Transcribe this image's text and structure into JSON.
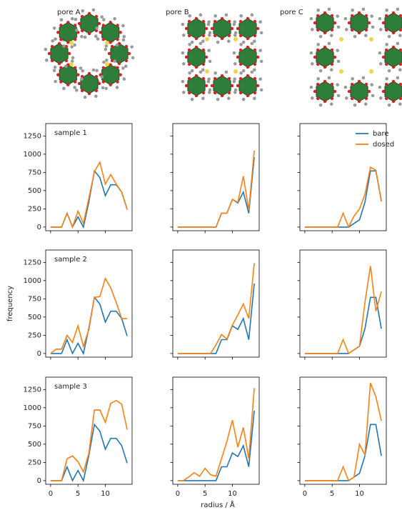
{
  "pore_labels": [
    "pore A",
    "pore B",
    "pore C"
  ],
  "figure": {
    "xlabel": "radius / Å",
    "ylabel": "frequency"
  },
  "chart_data": [
    {
      "type": "line",
      "title": "sample 1",
      "x": [
        0,
        1,
        2,
        3,
        4,
        5,
        6,
        7,
        8,
        9,
        10,
        11,
        12,
        13,
        14
      ],
      "xlim": [
        -0.9,
        14.9
      ],
      "ylim": [
        -50,
        1420
      ],
      "xticks": [
        0,
        5,
        10
      ],
      "yticks": [
        0,
        250,
        500,
        750,
        1000,
        1250
      ],
      "series": [
        {
          "color": "#1f77b4",
          "values": [
            0,
            0,
            0,
            190,
            0,
            140,
            0,
            350,
            770,
            680,
            430,
            580,
            580,
            480,
            240
          ]
        },
        {
          "color": "#ff7f0e",
          "values": [
            0,
            0,
            0,
            190,
            0,
            220,
            50,
            400,
            760,
            890,
            590,
            720,
            590,
            480,
            240
          ]
        }
      ]
    },
    {
      "type": "line",
      "x": [
        0,
        1,
        2,
        3,
        4,
        5,
        6,
        7,
        8,
        9,
        10,
        11,
        12,
        13,
        14
      ],
      "xlim": [
        -0.9,
        14.9
      ],
      "ylim": [
        -50,
        1420
      ],
      "xticks": [
        0,
        5,
        10
      ],
      "yticks": [
        0,
        250,
        500,
        750,
        1000,
        1250
      ],
      "series": [
        {
          "color": "#1f77b4",
          "values": [
            0,
            0,
            0,
            0,
            0,
            0,
            0,
            0,
            190,
            190,
            380,
            330,
            480,
            190,
            960
          ]
        },
        {
          "color": "#ff7f0e",
          "values": [
            0,
            0,
            0,
            0,
            0,
            0,
            0,
            0,
            190,
            190,
            380,
            340,
            700,
            230,
            1050
          ]
        }
      ]
    },
    {
      "type": "line",
      "x": [
        0,
        1,
        2,
        3,
        4,
        5,
        6,
        7,
        8,
        9,
        10,
        11,
        12,
        13,
        14
      ],
      "xlim": [
        -0.9,
        14.9
      ],
      "ylim": [
        -50,
        1420
      ],
      "xticks": [
        0,
        5,
        10
      ],
      "yticks": [
        0,
        250,
        500,
        750,
        1000,
        1250
      ],
      "legend": "upper right",
      "series": [
        {
          "name": "bare",
          "color": "#1f77b4",
          "values": [
            0,
            0,
            0,
            0,
            0,
            0,
            0,
            0,
            0,
            50,
            100,
            340,
            770,
            770,
            360
          ]
        },
        {
          "name": "dosed",
          "color": "#ff7f0e",
          "values": [
            0,
            0,
            0,
            0,
            0,
            0,
            0,
            190,
            0,
            150,
            250,
            450,
            820,
            780,
            350
          ]
        }
      ]
    },
    {
      "type": "line",
      "title": "sample 2",
      "x": [
        0,
        1,
        2,
        3,
        4,
        5,
        6,
        7,
        8,
        9,
        10,
        11,
        12,
        13,
        14
      ],
      "xlim": [
        -0.9,
        14.9
      ],
      "ylim": [
        -50,
        1420
      ],
      "xticks": [
        0,
        5,
        10
      ],
      "yticks": [
        0,
        250,
        500,
        750,
        1000,
        1250
      ],
      "series": [
        {
          "color": "#1f77b4",
          "values": [
            0,
            0,
            0,
            190,
            0,
            140,
            0,
            350,
            770,
            680,
            430,
            580,
            580,
            480,
            240
          ]
        },
        {
          "color": "#ff7f0e",
          "values": [
            0,
            60,
            60,
            250,
            150,
            380,
            100,
            330,
            770,
            780,
            1030,
            900,
            700,
            480,
            480
          ]
        }
      ]
    },
    {
      "type": "line",
      "x": [
        0,
        1,
        2,
        3,
        4,
        5,
        6,
        7,
        8,
        9,
        10,
        11,
        12,
        13,
        14
      ],
      "xlim": [
        -0.9,
        14.9
      ],
      "ylim": [
        -50,
        1420
      ],
      "xticks": [
        0,
        5,
        10
      ],
      "yticks": [
        0,
        250,
        500,
        750,
        1000,
        1250
      ],
      "series": [
        {
          "color": "#1f77b4",
          "values": [
            0,
            0,
            0,
            0,
            0,
            0,
            0,
            0,
            190,
            190,
            380,
            330,
            480,
            190,
            960
          ]
        },
        {
          "color": "#ff7f0e",
          "values": [
            0,
            0,
            0,
            0,
            0,
            0,
            0,
            120,
            260,
            200,
            390,
            530,
            680,
            480,
            1240
          ]
        }
      ]
    },
    {
      "type": "line",
      "x": [
        0,
        1,
        2,
        3,
        4,
        5,
        6,
        7,
        8,
        9,
        10,
        11,
        12,
        13,
        14
      ],
      "xlim": [
        -0.9,
        14.9
      ],
      "ylim": [
        -50,
        1420
      ],
      "xticks": [
        0,
        5,
        10
      ],
      "yticks": [
        0,
        250,
        500,
        750,
        1000,
        1250
      ],
      "series": [
        {
          "color": "#1f77b4",
          "values": [
            0,
            0,
            0,
            0,
            0,
            0,
            0,
            0,
            0,
            50,
            100,
            340,
            770,
            770,
            340
          ]
        },
        {
          "color": "#ff7f0e",
          "values": [
            0,
            0,
            0,
            0,
            0,
            0,
            0,
            190,
            0,
            50,
            100,
            700,
            1200,
            580,
            850
          ]
        }
      ]
    },
    {
      "type": "line",
      "title": "sample 3",
      "x": [
        0,
        1,
        2,
        3,
        4,
        5,
        6,
        7,
        8,
        9,
        10,
        11,
        12,
        13,
        14
      ],
      "xlim": [
        -0.9,
        14.9
      ],
      "ylim": [
        -50,
        1420
      ],
      "xticks": [
        0,
        5,
        10
      ],
      "yticks": [
        0,
        250,
        500,
        750,
        1000,
        1250
      ],
      "series": [
        {
          "color": "#1f77b4",
          "values": [
            0,
            0,
            0,
            190,
            0,
            140,
            0,
            350,
            770,
            680,
            430,
            580,
            580,
            480,
            240
          ]
        },
        {
          "color": "#ff7f0e",
          "values": [
            0,
            0,
            0,
            300,
            340,
            260,
            120,
            380,
            970,
            970,
            800,
            1060,
            1100,
            1050,
            700
          ]
        }
      ]
    },
    {
      "type": "line",
      "x": [
        0,
        1,
        2,
        3,
        4,
        5,
        6,
        7,
        8,
        9,
        10,
        11,
        12,
        13,
        14
      ],
      "xlim": [
        -0.9,
        14.9
      ],
      "ylim": [
        -50,
        1420
      ],
      "xticks": [
        0,
        5,
        10
      ],
      "yticks": [
        0,
        250,
        500,
        750,
        1000,
        1250
      ],
      "series": [
        {
          "color": "#1f77b4",
          "values": [
            0,
            0,
            0,
            0,
            0,
            0,
            0,
            0,
            190,
            190,
            380,
            330,
            480,
            190,
            960
          ]
        },
        {
          "color": "#ff7f0e",
          "values": [
            0,
            0,
            50,
            110,
            60,
            170,
            80,
            60,
            300,
            540,
            830,
            460,
            730,
            300,
            1270
          ]
        }
      ]
    },
    {
      "type": "line",
      "x": [
        0,
        1,
        2,
        3,
        4,
        5,
        6,
        7,
        8,
        9,
        10,
        11,
        12,
        13,
        14
      ],
      "xlim": [
        -0.9,
        14.9
      ],
      "ylim": [
        -50,
        1420
      ],
      "xticks": [
        0,
        5,
        10
      ],
      "yticks": [
        0,
        250,
        500,
        750,
        1000,
        1250
      ],
      "series": [
        {
          "color": "#1f77b4",
          "values": [
            0,
            0,
            0,
            0,
            0,
            0,
            0,
            0,
            0,
            50,
            100,
            340,
            770,
            770,
            340
          ]
        },
        {
          "color": "#ff7f0e",
          "values": [
            0,
            0,
            0,
            0,
            0,
            0,
            0,
            190,
            0,
            50,
            500,
            350,
            1340,
            1150,
            820
          ]
        }
      ]
    }
  ]
}
